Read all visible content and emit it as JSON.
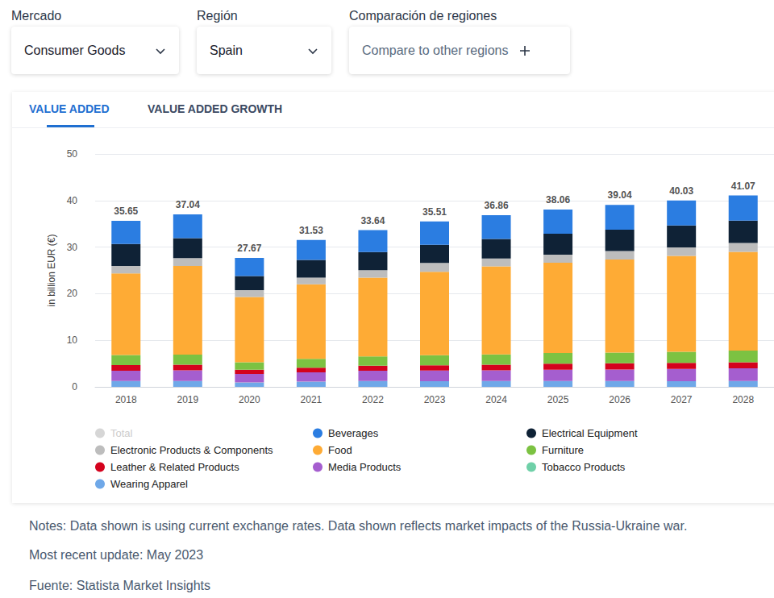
{
  "header": {
    "controls": [
      {
        "label": "Mercado",
        "value": "Consumer Goods"
      },
      {
        "label": "Región",
        "value": "Spain"
      },
      {
        "label": "Comparación de regiones",
        "value": "Compare to other regions"
      }
    ]
  },
  "tabs": [
    "VALUE ADDED",
    "VALUE ADDED GROWTH"
  ],
  "chart_data": {
    "type": "bar",
    "y_label": "in billion EUR (€)",
    "categories": [
      "2018",
      "2019",
      "2020",
      "2021",
      "2022",
      "2023",
      "2024",
      "2025",
      "2026",
      "2027",
      "2028"
    ],
    "ylim": [
      0,
      50
    ],
    "yticks": [
      0,
      10,
      20,
      30,
      40,
      50
    ],
    "grid": true,
    "stacked": true,
    "legend": "bottom",
    "data_labels": true,
    "series": [
      {
        "name": "Total",
        "type": "scatter",
        "marker": "none",
        "color": "#cccccc",
        "values": [
          35.65,
          37.04,
          27.67,
          31.53,
          33.64,
          35.51,
          36.86,
          38.06,
          39.04,
          40.03,
          41.07
        ]
      },
      {
        "name": "Beverages",
        "color": "#2b7de1",
        "values": [
          5.0,
          5.1,
          3.9,
          4.3,
          4.7,
          5.0,
          5.1,
          5.2,
          5.3,
          5.4,
          5.4
        ]
      },
      {
        "name": "Electrical Equipment",
        "color": "#0f2236",
        "values": [
          4.7,
          4.3,
          3.0,
          3.8,
          3.9,
          3.9,
          4.2,
          4.5,
          4.6,
          4.7,
          4.8
        ]
      },
      {
        "name": "Electronic Products & Components",
        "color": "#bdbdbd",
        "values": [
          1.6,
          1.7,
          1.5,
          1.4,
          1.6,
          1.9,
          1.7,
          1.7,
          1.8,
          1.8,
          1.9
        ]
      },
      {
        "name": "Food",
        "color": "#feab35",
        "values": [
          17.5,
          19.0,
          14.0,
          16.0,
          16.9,
          17.9,
          18.9,
          19.4,
          20.0,
          20.6,
          21.2
        ]
      },
      {
        "name": "Furniture",
        "color": "#7cc242",
        "values": [
          2.2,
          2.2,
          1.6,
          1.9,
          2.0,
          2.2,
          2.2,
          2.3,
          2.3,
          2.4,
          2.5
        ]
      },
      {
        "name": "Leather & Related Products",
        "color": "#d4021d",
        "values": [
          1.2,
          1.2,
          0.9,
          1.0,
          1.1,
          1.1,
          1.2,
          1.3,
          1.3,
          1.3,
          1.3
        ]
      },
      {
        "name": "Media Products",
        "color": "#a55ecf",
        "values": [
          2.2,
          2.3,
          1.8,
          2.0,
          2.2,
          2.3,
          2.3,
          2.4,
          2.5,
          2.6,
          2.7
        ]
      },
      {
        "name": "Tobacco Products",
        "color": "#6fd0a8",
        "values": [
          0.05,
          0.04,
          0.07,
          0.03,
          0.04,
          0.01,
          0.06,
          0.06,
          0.04,
          0.03,
          0.07
        ]
      },
      {
        "name": "Wearing Apparel",
        "color": "#6fa8e8",
        "values": [
          1.2,
          1.2,
          0.9,
          1.1,
          1.2,
          1.2,
          1.2,
          1.2,
          1.2,
          1.2,
          1.2
        ]
      }
    ]
  },
  "notes": [
    "Notes: Data shown is using current exchange rates. Data shown reflects market impacts of the Russia-Ukraine war.",
    "Most recent update: May 2023",
    "Fuente: Statista Market Insights"
  ]
}
